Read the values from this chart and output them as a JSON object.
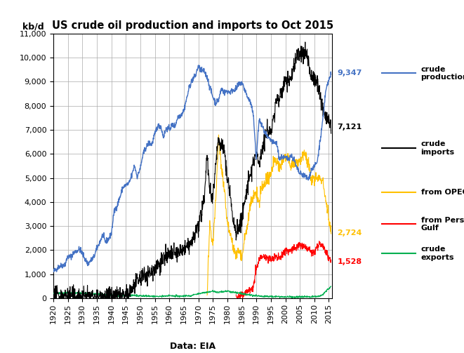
{
  "title": "US crude oil production and imports to Oct 2015",
  "ylabel": "kb/d",
  "xlabel_note": "Data: EIA",
  "ylim": [
    0,
    11000
  ],
  "yticks": [
    0,
    1000,
    2000,
    3000,
    4000,
    5000,
    6000,
    7000,
    8000,
    9000,
    10000,
    11000
  ],
  "xlim": [
    1920,
    2016
  ],
  "xticks": [
    1920,
    1925,
    1930,
    1935,
    1940,
    1945,
    1950,
    1955,
    1960,
    1965,
    1970,
    1975,
    1980,
    1985,
    1990,
    1995,
    2000,
    2005,
    2010,
    2015
  ],
  "colors": {
    "production": "#4472C4",
    "imports": "#000000",
    "opec": "#FFC000",
    "persian_gulf": "#FF0000",
    "exports": "#00B050"
  },
  "annotations": {
    "production": {
      "value": "9,347",
      "color": "#4472C4",
      "y": 9347
    },
    "imports": {
      "value": "7,121",
      "color": "#000000",
      "y": 7121
    },
    "opec": {
      "value": "2,724",
      "color": "#FFC000",
      "y": 2724
    },
    "persian_gulf": {
      "value": "1,528",
      "color": "#FF0000",
      "y": 1528
    }
  },
  "background_color": "#FFFFFF",
  "grid_color": "#AAAAAA"
}
